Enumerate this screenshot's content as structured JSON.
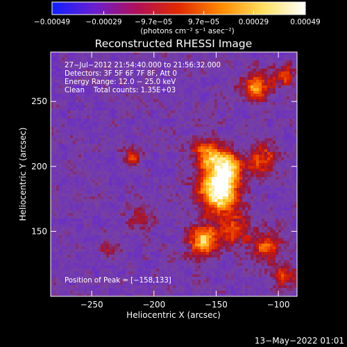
{
  "chart_data": {
    "type": "heatmap",
    "title": "Reconstructed RHESSI Image",
    "xlabel": "Heliocentric X (arcsec)",
    "ylabel": "Heliocentric Y (arcsec)",
    "xlim": [
      -283,
      -85
    ],
    "ylim": [
      100,
      288
    ],
    "x_ticks": [
      -250,
      -200,
      -150,
      -100
    ],
    "y_ticks": [
      150,
      200,
      250
    ],
    "x_tick_labels": [
      "−250",
      "−200",
      "−150",
      "−100"
    ],
    "y_tick_labels": [
      "150",
      "200",
      "250"
    ],
    "colorbar": {
      "range": [
        -0.00049,
        0.00049
      ],
      "tick_values": [
        -0.00049,
        -0.00029,
        -9.7e-05,
        9.7e-05,
        0.00029,
        0.00049
      ],
      "tick_labels": [
        "−0.00049",
        "−0.00029",
        "−9.7e−05",
        "9.7e−05",
        "0.00029",
        "0.00049"
      ],
      "unit_label": "(photons cm⁻² s⁻¹ asec⁻²)",
      "colors": [
        "#1020ff",
        "#6a1fd0",
        "#b0105a",
        "#e02a00",
        "#ff8a00",
        "#ffe060",
        "#ffffff"
      ]
    },
    "annotations": [
      "27−Jul−2012 21:54:40.000 to 21:56:32.000",
      "Detectors: 3F 5F 6F 7F 8F, Att 0",
      "Energy Range: 12.0 − 25.0 keV",
      "Clean    Total counts: 1.35E+03",
      "Position of Peak = [−158,133]"
    ],
    "peak": [
      -158,
      133
    ],
    "sources": [
      {
        "x": -148,
        "y": 180,
        "sigma": 12,
        "amp": 1.0
      },
      {
        "x": -142,
        "y": 200,
        "sigma": 9,
        "amp": 0.75
      },
      {
        "x": -158,
        "y": 210,
        "sigma": 9,
        "amp": 0.6
      },
      {
        "x": -160,
        "y": 143,
        "sigma": 9,
        "amp": 0.8
      },
      {
        "x": -135,
        "y": 150,
        "sigma": 8,
        "amp": 0.55
      },
      {
        "x": -110,
        "y": 138,
        "sigma": 9,
        "amp": 0.55
      },
      {
        "x": -113,
        "y": 205,
        "sigma": 9,
        "amp": 0.55
      },
      {
        "x": -118,
        "y": 262,
        "sigma": 8,
        "amp": 0.7
      },
      {
        "x": -96,
        "y": 270,
        "sigma": 6,
        "amp": 0.55
      },
      {
        "x": -217,
        "y": 207,
        "sigma": 5,
        "amp": 0.6
      },
      {
        "x": -210,
        "y": 160,
        "sigma": 7,
        "amp": 0.4
      },
      {
        "x": -235,
        "y": 135,
        "sigma": 6,
        "amp": 0.35
      },
      {
        "x": -95,
        "y": 115,
        "sigma": 7,
        "amp": 0.45
      }
    ]
  },
  "footer": {
    "date": "13−May−2022 01:01"
  }
}
